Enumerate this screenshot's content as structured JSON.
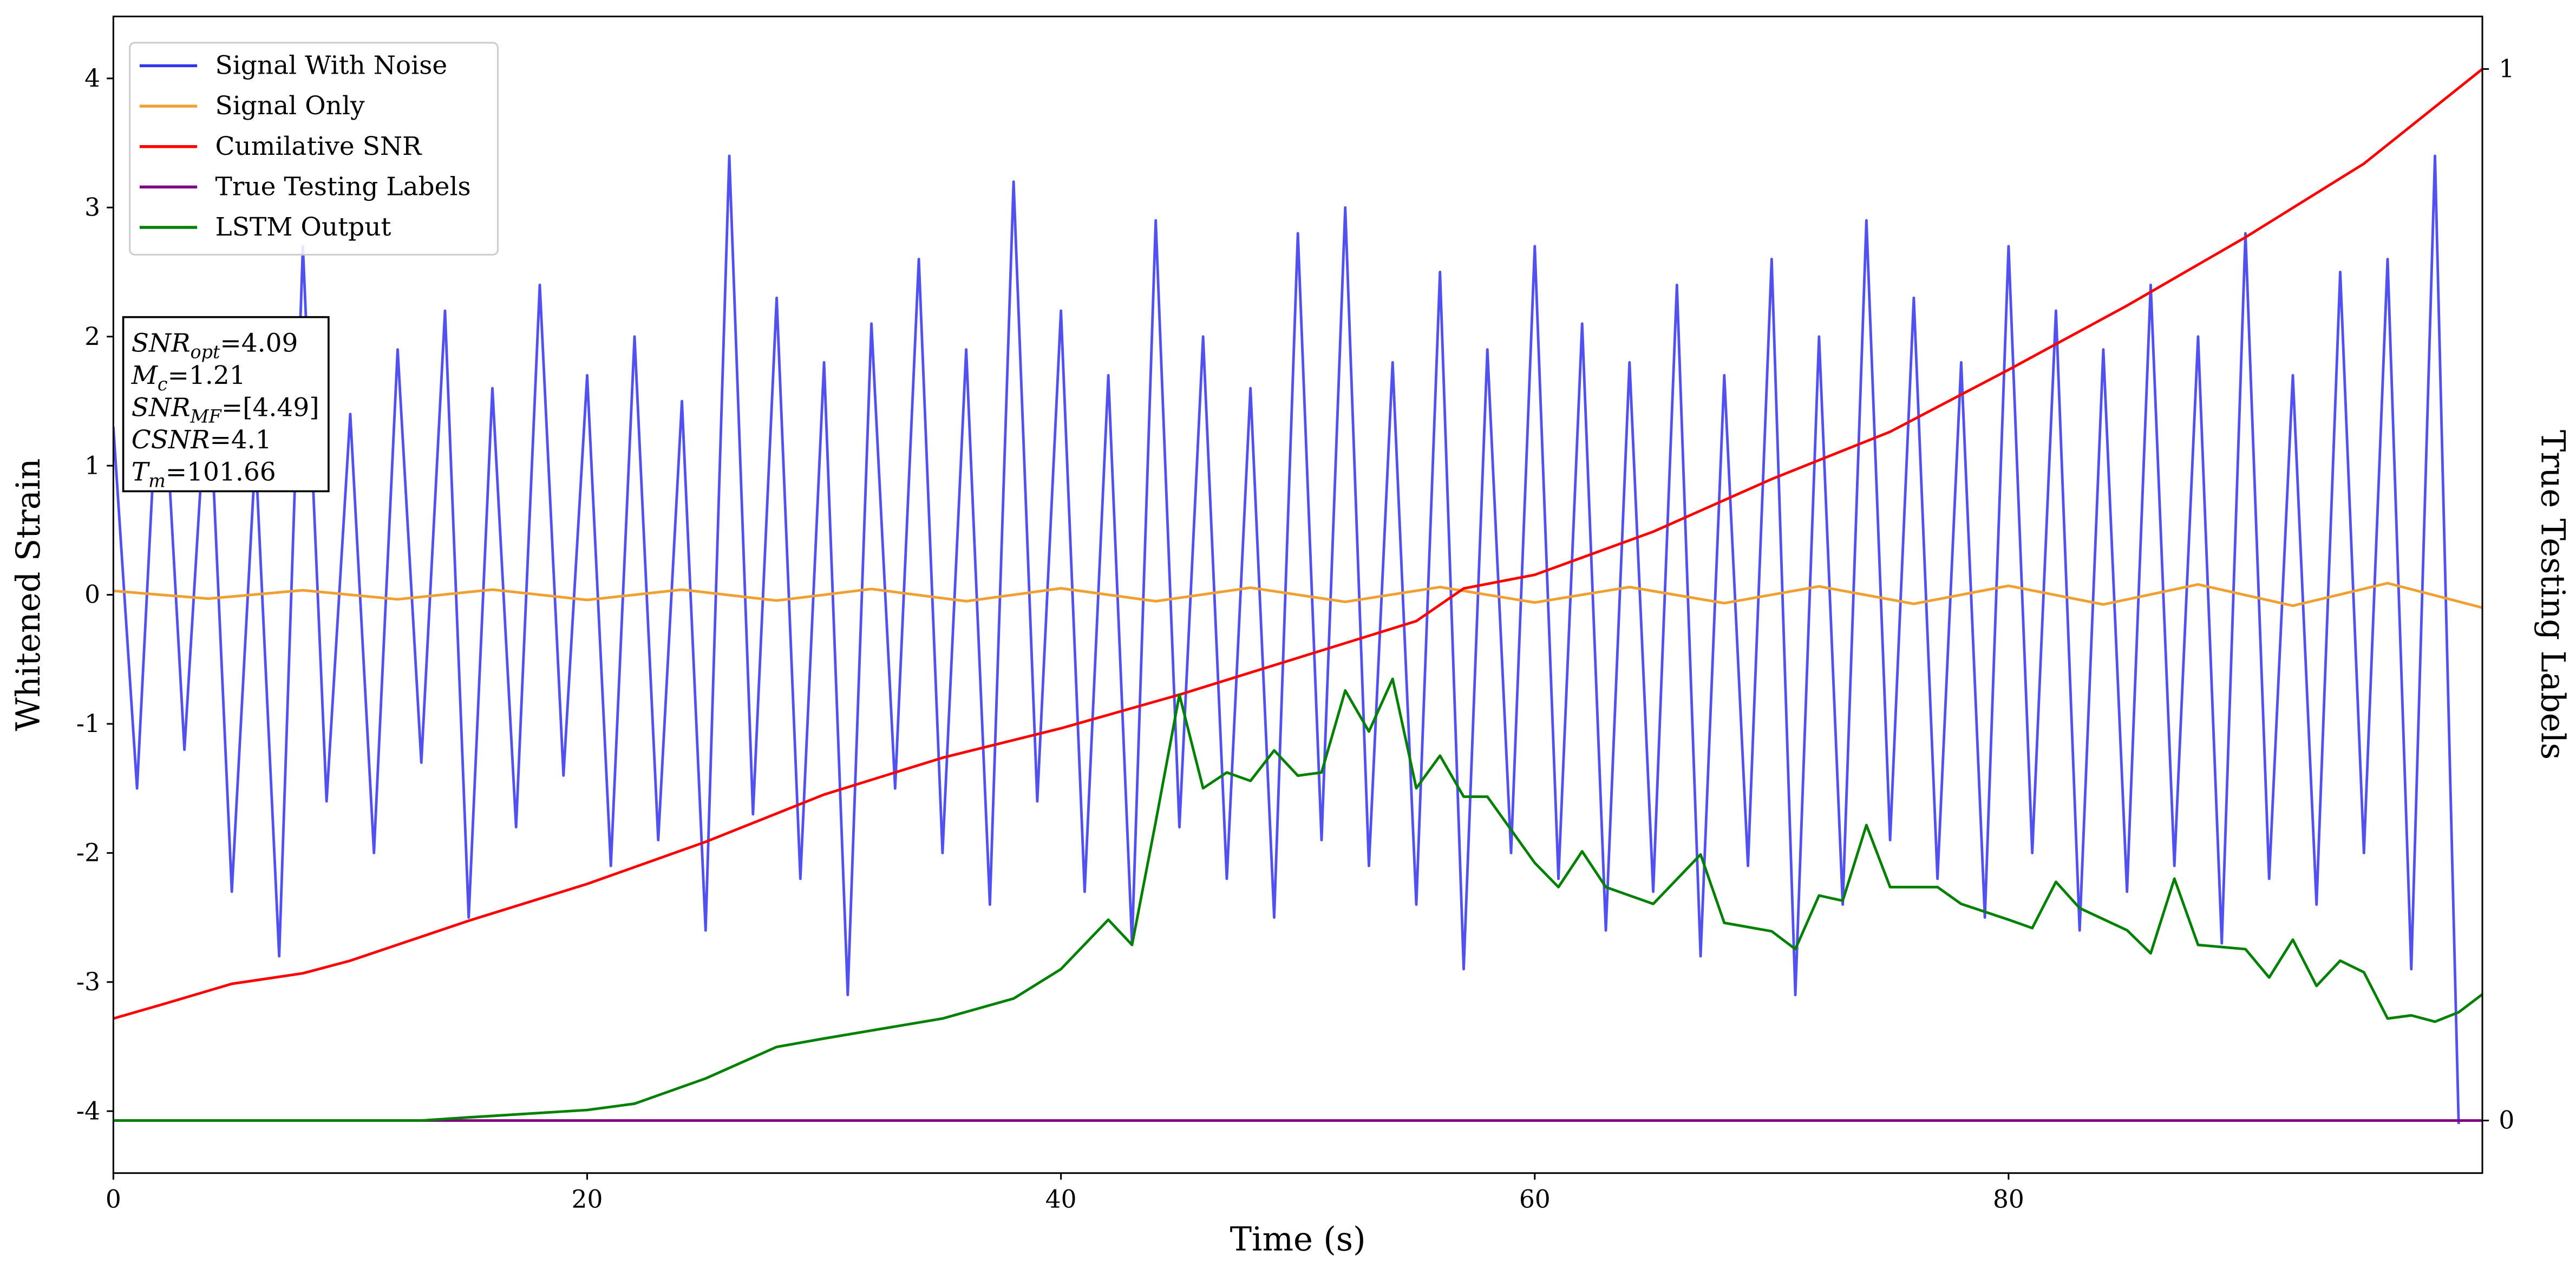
{
  "chart_data": {
    "type": "line",
    "xlabel": "Time (s)",
    "ylabel": "Whitened Strain",
    "y2label": "True Testing Labels",
    "xlim": [
      0,
      100
    ],
    "ylim": [
      -4.48,
      4.48
    ],
    "y2lim": [
      -0.05,
      1.05
    ],
    "xticks": [
      0,
      20,
      40,
      60,
      80
    ],
    "yticks": [
      -4,
      -3,
      -2,
      -1,
      0,
      1,
      2,
      3,
      4
    ],
    "y2ticks": [
      0,
      1
    ],
    "legend": "upper left",
    "series": [
      {
        "name": "Signal With Noise",
        "color": "#3333ee",
        "axis": "y",
        "x": [
          0,
          1,
          2,
          3,
          4,
          5,
          6,
          7,
          8,
          9,
          10,
          11,
          12,
          13,
          14,
          15,
          16,
          17,
          18,
          19,
          20,
          21,
          22,
          23,
          24,
          25,
          26,
          27,
          28,
          29,
          30,
          31,
          32,
          33,
          34,
          35,
          36,
          37,
          38,
          39,
          40,
          41,
          42,
          43,
          44,
          45,
          46,
          47,
          48,
          49,
          50,
          51,
          52,
          53,
          54,
          55,
          56,
          57,
          58,
          59,
          60,
          61,
          62,
          63,
          64,
          65,
          66,
          67,
          68,
          69,
          70,
          71,
          72,
          73,
          74,
          75,
          76,
          77,
          78,
          79,
          80,
          81,
          82,
          83,
          84,
          85,
          86,
          87,
          88,
          89,
          90,
          91,
          92,
          93,
          94,
          95,
          96,
          97,
          98,
          99
        ],
        "values": [
          1.3,
          -1.5,
          2.1,
          -1.2,
          1.8,
          -2.3,
          1.1,
          -2.8,
          2.7,
          -1.6,
          1.4,
          -2.0,
          1.9,
          -1.3,
          2.2,
          -2.5,
          1.6,
          -1.8,
          2.4,
          -1.4,
          1.7,
          -2.1,
          2.0,
          -1.9,
          1.5,
          -2.6,
          3.4,
          -1.7,
          2.3,
          -2.2,
          1.8,
          -3.1,
          2.1,
          -1.5,
          2.6,
          -2.0,
          1.9,
          -2.4,
          3.2,
          -1.6,
          2.2,
          -2.3,
          1.7,
          -2.7,
          2.9,
          -1.8,
          2.0,
          -2.2,
          1.6,
          -2.5,
          2.8,
          -1.9,
          3.0,
          -2.1,
          1.8,
          -2.4,
          2.5,
          -2.9,
          1.9,
          -2.0,
          2.7,
          -2.2,
          2.1,
          -2.6,
          1.8,
          -2.3,
          2.4,
          -2.8,
          1.7,
          -2.1,
          2.6,
          -3.1,
          2.0,
          -2.4,
          2.9,
          -1.9,
          2.3,
          -2.2,
          1.8,
          -2.5,
          2.7,
          -2.0,
          2.2,
          -2.6,
          1.9,
          -2.3,
          2.4,
          -2.1,
          2.0,
          -2.7,
          2.8,
          -2.2,
          1.7,
          -2.4,
          2.5,
          -2.0,
          2.6,
          -2.9,
          3.4,
          -4.1
        ]
      },
      {
        "name": "Signal Only",
        "color": "#f0a030",
        "axis": "y",
        "x": [
          0,
          4,
          8,
          12,
          16,
          20,
          24,
          28,
          32,
          36,
          40,
          44,
          48,
          52,
          56,
          60,
          64,
          68,
          72,
          76,
          80,
          84,
          88,
          92,
          96,
          100
        ],
        "values": [
          0.03,
          -0.03,
          0.035,
          -0.035,
          0.04,
          -0.04,
          0.04,
          -0.045,
          0.045,
          -0.05,
          0.05,
          -0.05,
          0.055,
          -0.055,
          0.06,
          -0.06,
          0.06,
          -0.065,
          0.065,
          -0.07,
          0.07,
          -0.075,
          0.08,
          -0.085,
          0.09,
          -0.1
        ]
      },
      {
        "name": "Cumilative SNR",
        "color": "#ff0000",
        "axis": "y2",
        "x": [
          0,
          2,
          5,
          8,
          10,
          15,
          20,
          25,
          30,
          35,
          40,
          45,
          50,
          55,
          57,
          60,
          65,
          70,
          75,
          80,
          85,
          90,
          95,
          100
        ],
        "values": [
          0.097,
          0.11,
          0.13,
          0.14,
          0.152,
          0.19,
          0.225,
          0.265,
          0.31,
          0.345,
          0.373,
          0.405,
          0.44,
          0.475,
          0.506,
          0.519,
          0.56,
          0.61,
          0.655,
          0.714,
          0.775,
          0.84,
          0.91,
          1.0
        ]
      },
      {
        "name": "True Testing Labels",
        "color": "#800080",
        "axis": "y2",
        "x": [
          0,
          100
        ],
        "values": [
          0,
          0
        ]
      },
      {
        "name": "LSTM Output",
        "color": "#008000",
        "axis": "y2",
        "x": [
          0,
          13,
          15,
          20,
          22,
          25,
          28,
          30,
          35,
          38,
          40,
          42,
          43,
          44,
          45,
          46,
          47,
          48,
          49,
          50,
          51,
          52,
          53,
          54,
          55,
          56,
          57,
          58,
          60,
          61,
          62,
          63,
          65,
          67,
          68,
          70,
          71,
          72,
          73,
          74,
          75,
          77,
          78,
          80,
          81,
          82,
          83,
          85,
          86,
          87,
          88,
          90,
          91,
          92,
          93,
          94,
          95,
          96,
          97,
          98,
          99,
          100
        ],
        "values": [
          0,
          0,
          0.003,
          0.01,
          0.016,
          0.04,
          0.07,
          0.078,
          0.097,
          0.116,
          0.144,
          0.191,
          0.167,
          0.284,
          0.405,
          0.316,
          0.331,
          0.323,
          0.352,
          0.328,
          0.331,
          0.409,
          0.37,
          0.42,
          0.316,
          0.347,
          0.308,
          0.308,
          0.245,
          0.222,
          0.256,
          0.222,
          0.206,
          0.253,
          0.188,
          0.18,
          0.163,
          0.214,
          0.209,
          0.281,
          0.222,
          0.222,
          0.206,
          0.191,
          0.183,
          0.227,
          0.202,
          0.181,
          0.159,
          0.23,
          0.167,
          0.163,
          0.136,
          0.172,
          0.128,
          0.152,
          0.141,
          0.097,
          0.1,
          0.094,
          0.103,
          0.12
        ]
      }
    ],
    "annotations": [
      {
        "symbol": "SNR",
        "sub": "opt",
        "text": "=4.09"
      },
      {
        "symbol": "M",
        "sub": "c",
        "text": "=1.21"
      },
      {
        "symbol": "SNR",
        "sub": "MF",
        "text": "=[4.49]"
      },
      {
        "symbol": "CSNR",
        "text": "=4.1"
      },
      {
        "symbol": "T",
        "sub": "m",
        "text": "=101.66"
      }
    ]
  }
}
